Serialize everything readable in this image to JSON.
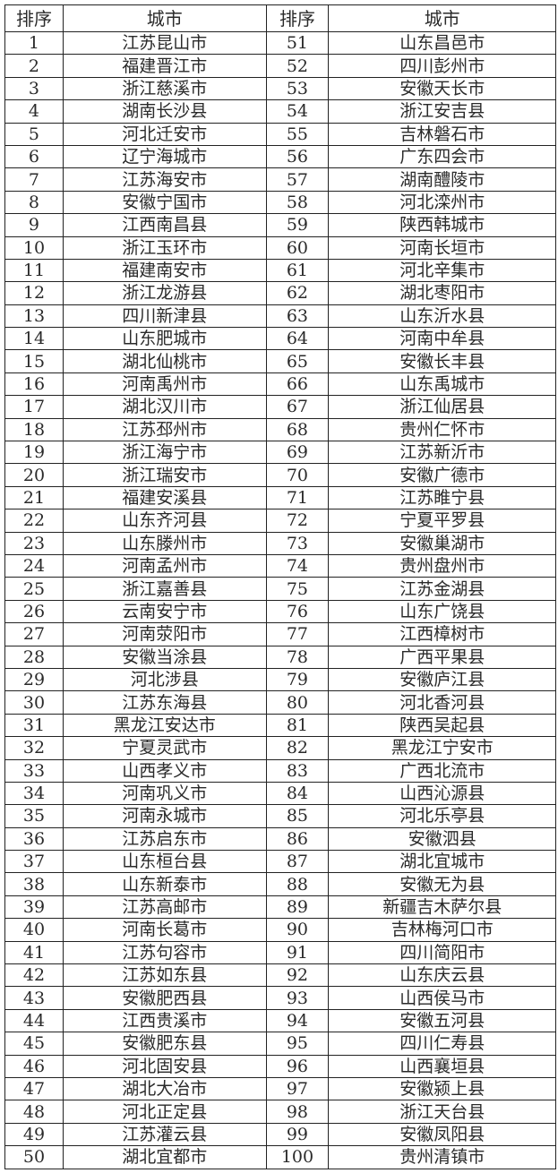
{
  "header": [
    "排序",
    "城市",
    "排序",
    "城市"
  ],
  "rows": [
    [
      "1",
      "江苏昆山市",
      "51",
      "山东昌邑市"
    ],
    [
      "2",
      "福建晋江市",
      "52",
      "四川彭州市"
    ],
    [
      "3",
      "浙江慈溪市",
      "53",
      "安徽天长市"
    ],
    [
      "4",
      "湖南长沙县",
      "54",
      "浙江安吉县"
    ],
    [
      "5",
      "河北迁安市",
      "55",
      "吉林磐石市"
    ],
    [
      "6",
      "辽宁海城市",
      "56",
      "广东四会市"
    ],
    [
      "7",
      "江苏海安市",
      "57",
      "湖南醴陵市"
    ],
    [
      "8",
      "安徽宁国市",
      "58",
      "河北滦州市"
    ],
    [
      "9",
      "江西南昌县",
      "59",
      "陕西韩城市"
    ],
    [
      "10",
      "浙江玉环市",
      "60",
      "河南长垣市"
    ],
    [
      "11",
      "福建南安市",
      "61",
      "河北辛集市"
    ],
    [
      "12",
      "浙江龙游县",
      "62",
      "湖北枣阳市"
    ],
    [
      "13",
      "四川新津县",
      "63",
      "山东沂水县"
    ],
    [
      "14",
      "山东肥城市",
      "64",
      "河南中牟县"
    ],
    [
      "15",
      "湖北仙桃市",
      "65",
      "安徽长丰县"
    ],
    [
      "16",
      "河南禹州市",
      "66",
      "山东禹城市"
    ],
    [
      "17",
      "湖北汉川市",
      "67",
      "浙江仙居县"
    ],
    [
      "18",
      "江苏邳州市",
      "68",
      "贵州仁怀市"
    ],
    [
      "19",
      "浙江海宁市",
      "69",
      "江苏新沂市"
    ],
    [
      "20",
      "浙江瑞安市",
      "70",
      "安徽广德市"
    ],
    [
      "21",
      "福建安溪县",
      "71",
      "江苏睢宁县"
    ],
    [
      "22",
      "山东齐河县",
      "72",
      "宁夏平罗县"
    ],
    [
      "23",
      "山东滕州市",
      "73",
      "安徽巢湖市"
    ],
    [
      "24",
      "河南孟州市",
      "74",
      "贵州盘州市"
    ],
    [
      "25",
      "浙江嘉善县",
      "75",
      "江苏金湖县"
    ],
    [
      "26",
      "云南安宁市",
      "76",
      "山东广饶县"
    ],
    [
      "27",
      "河南荥阳市",
      "77",
      "江西樟树市"
    ],
    [
      "28",
      "安徽当涂县",
      "78",
      "广西平果县"
    ],
    [
      "29",
      "河北涉县",
      "79",
      "安徽庐江县"
    ],
    [
      "30",
      "江苏东海县",
      "80",
      "河北香河县"
    ],
    [
      "31",
      "黑龙江安达市",
      "81",
      "陕西吴起县"
    ],
    [
      "32",
      "宁夏灵武市",
      "82",
      "黑龙江宁安市"
    ],
    [
      "33",
      "山西孝义市",
      "83",
      "广西北流市"
    ],
    [
      "34",
      "河南巩义市",
      "84",
      "山西沁源县"
    ],
    [
      "35",
      "河南永城市",
      "85",
      "河北乐亭县"
    ],
    [
      "36",
      "江苏启东市",
      "86",
      "安徽泗县"
    ],
    [
      "37",
      "山东桓台县",
      "87",
      "湖北宜城市"
    ],
    [
      "38",
      "山东新泰市",
      "88",
      "安徽无为县"
    ],
    [
      "39",
      "江苏高邮市",
      "89",
      "新疆吉木萨尔县"
    ],
    [
      "40",
      "河南长葛市",
      "90",
      "吉林梅河口市"
    ],
    [
      "41",
      "江苏句容市",
      "91",
      "四川简阳市"
    ],
    [
      "42",
      "江苏如东县",
      "92",
      "山东庆云县"
    ],
    [
      "43",
      "安徽肥西县",
      "93",
      "山西侯马市"
    ],
    [
      "44",
      "江西贵溪市",
      "94",
      "安徽五河县"
    ],
    [
      "45",
      "安徽肥东县",
      "95",
      "四川仁寿县"
    ],
    [
      "46",
      "河北固安县",
      "96",
      "山西襄垣县"
    ],
    [
      "47",
      "湖北大冶市",
      "97",
      "安徽颍上县"
    ],
    [
      "48",
      "河北正定县",
      "98",
      "浙江天台县"
    ],
    [
      "49",
      "江苏灌云县",
      "99",
      "安徽凤阳县"
    ],
    [
      "50",
      "湖北宜都市",
      "100",
      "贵州清镇市"
    ]
  ]
}
